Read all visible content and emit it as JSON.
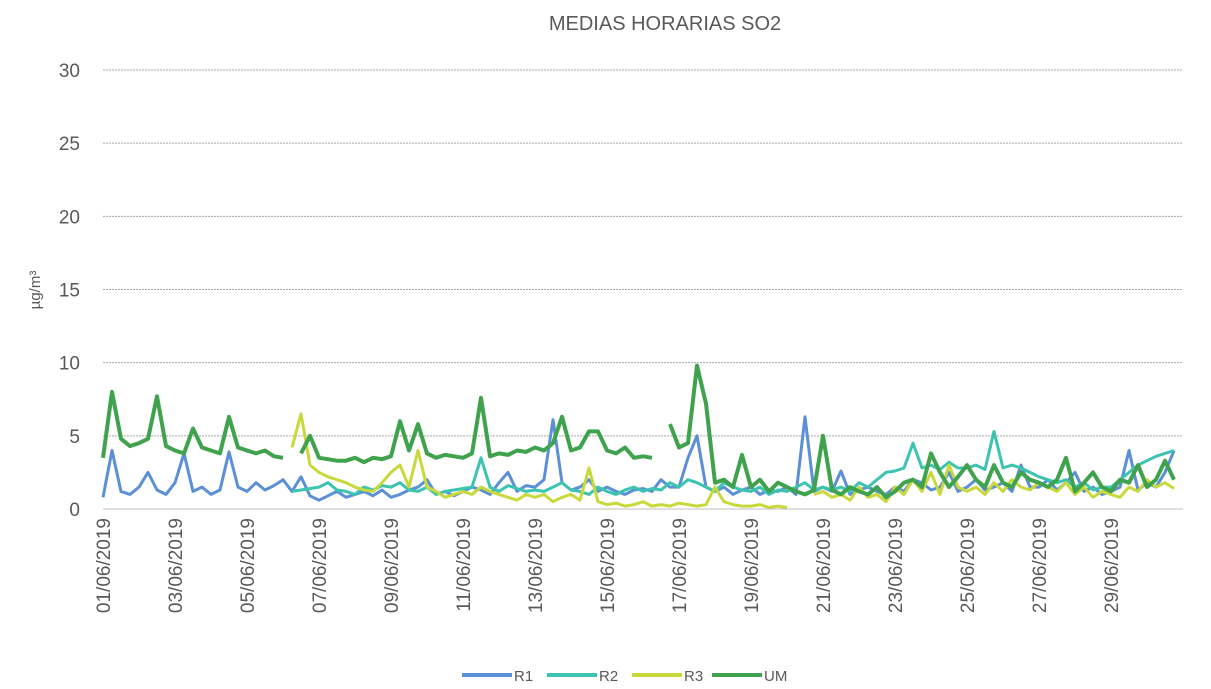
{
  "chart_data": {
    "type": "line",
    "title": "MEDIAS HORARIAS SO2",
    "y_label": "µg/m³",
    "categories": [
      "01/06/2019",
      null,
      null,
      null,
      null,
      null,
      null,
      null,
      "03/06/2019",
      null,
      null,
      null,
      null,
      null,
      null,
      null,
      "05/06/2019",
      null,
      null,
      null,
      null,
      null,
      null,
      null,
      "07/06/2019",
      null,
      null,
      null,
      null,
      null,
      null,
      null,
      "09/06/2019",
      null,
      null,
      null,
      null,
      null,
      null,
      null,
      "11/06/2019",
      null,
      null,
      null,
      null,
      null,
      null,
      null,
      "13/06/2019",
      null,
      null,
      null,
      null,
      null,
      null,
      null,
      "15/06/2019",
      null,
      null,
      null,
      null,
      null,
      null,
      null,
      "17/06/2019",
      null,
      null,
      null,
      null,
      null,
      null,
      null,
      "19/06/2019",
      null,
      null,
      null,
      null,
      null,
      null,
      null,
      "21/06/2019",
      null,
      null,
      null,
      null,
      null,
      null,
      null,
      "23/06/2019",
      null,
      null,
      null,
      null,
      null,
      null,
      null,
      "25/06/2019",
      null,
      null,
      null,
      null,
      null,
      null,
      null,
      "27/06/2019",
      null,
      null,
      null,
      null,
      null,
      null,
      null,
      "29/06/2019",
      null,
      null,
      null,
      null,
      null,
      null,
      null
    ],
    "series": [
      {
        "name": "R1",
        "color": "#5b8fd6",
        "values": [
          0.8,
          4.0,
          1.2,
          1.0,
          1.5,
          2.5,
          1.3,
          1.0,
          1.8,
          3.8,
          1.2,
          1.5,
          1.0,
          1.3,
          3.9,
          1.5,
          1.2,
          1.8,
          1.3,
          1.6,
          2.0,
          1.2,
          2.2,
          0.9,
          0.6,
          0.9,
          1.2,
          0.8,
          1.0,
          1.2,
          0.9,
          1.3,
          0.8,
          1.0,
          1.3,
          1.5,
          2.0,
          1.0,
          1.2,
          0.9,
          1.2,
          1.5,
          1.3,
          1.0,
          1.8,
          2.5,
          1.2,
          1.6,
          1.5,
          2.0,
          6.1,
          1.8,
          1.3,
          1.5,
          2.0,
          1.2,
          1.5,
          1.2,
          1.0,
          1.3,
          1.4,
          1.2,
          2.0,
          1.5,
          1.5,
          3.5,
          5.0,
          1.5,
          1.2,
          1.5,
          1.0,
          1.3,
          1.5,
          1.0,
          1.3,
          1.2,
          1.5,
          1.0,
          6.3,
          1.2,
          1.5,
          1.2,
          2.6,
          1.0,
          1.3,
          1.5,
          1.2,
          1.0,
          1.5,
          1.2,
          2.0,
          1.8,
          1.3,
          1.5,
          2.5,
          1.2,
          1.5,
          2.0,
          1.3,
          1.5,
          1.8,
          1.2,
          3.0,
          1.5,
          1.5,
          2.0,
          1.3,
          1.8,
          2.5,
          1.2,
          1.5,
          1.0,
          1.2,
          1.5,
          4.0,
          1.3,
          1.8,
          1.5,
          2.5,
          4.0
        ]
      },
      {
        "name": "R2",
        "color": "#3cc4b0",
        "values": [
          null,
          null,
          null,
          null,
          null,
          null,
          null,
          null,
          null,
          null,
          null,
          null,
          null,
          null,
          null,
          null,
          null,
          null,
          null,
          null,
          null,
          1.2,
          1.3,
          1.4,
          1.5,
          1.8,
          1.3,
          1.2,
          1.0,
          1.5,
          1.3,
          1.6,
          1.5,
          1.8,
          1.3,
          1.2,
          1.5,
          1.0,
          1.2,
          1.3,
          1.4,
          1.5,
          3.5,
          1.5,
          1.2,
          1.6,
          1.4,
          1.2,
          1.3,
          1.2,
          1.5,
          1.8,
          1.3,
          1.2,
          1.0,
          1.5,
          1.2,
          1.0,
          1.3,
          1.5,
          1.2,
          1.4,
          1.3,
          1.8,
          1.5,
          2.0,
          1.8,
          1.5,
          1.2,
          1.8,
          1.5,
          1.3,
          1.2,
          1.5,
          1.0,
          1.3,
          1.2,
          1.5,
          1.8,
          1.3,
          1.5,
          1.3,
          1.5,
          1.2,
          1.8,
          1.5,
          2.0,
          2.5,
          2.6,
          2.8,
          4.5,
          2.8,
          3.0,
          2.7,
          3.2,
          2.8,
          2.8,
          3.0,
          2.7,
          5.3,
          2.8,
          3.0,
          2.8,
          2.5,
          2.2,
          2.0,
          1.8,
          2.0,
          1.5,
          1.8,
          1.3,
          1.5,
          1.5,
          2.0,
          2.5,
          3.0,
          3.3,
          3.6,
          3.8,
          4.0
        ]
      },
      {
        "name": "R3",
        "color": "#c9d83a",
        "values": [
          null,
          null,
          null,
          null,
          null,
          null,
          null,
          null,
          null,
          null,
          null,
          null,
          null,
          null,
          null,
          null,
          null,
          null,
          null,
          null,
          null,
          4.2,
          6.5,
          3.0,
          2.5,
          2.2,
          2.0,
          1.8,
          1.5,
          1.3,
          1.2,
          1.8,
          2.5,
          3.0,
          1.5,
          4.0,
          1.5,
          1.2,
          0.8,
          1.0,
          1.2,
          1.0,
          1.5,
          1.2,
          1.0,
          0.8,
          0.6,
          1.0,
          0.8,
          1.0,
          0.5,
          0.8,
          1.0,
          0.6,
          2.8,
          0.5,
          0.3,
          0.4,
          0.2,
          0.3,
          0.5,
          0.2,
          0.3,
          0.2,
          0.4,
          0.3,
          0.2,
          0.3,
          1.5,
          0.5,
          0.3,
          0.2,
          0.2,
          0.3,
          0.1,
          0.2,
          0.1,
          null,
          null,
          1.0,
          1.2,
          0.8,
          1.0,
          0.6,
          1.5,
          0.8,
          1.0,
          0.5,
          1.5,
          1.0,
          2.0,
          1.2,
          2.5,
          1.0,
          3.0,
          1.5,
          1.2,
          1.5,
          1.0,
          1.8,
          1.2,
          2.0,
          1.5,
          1.3,
          1.8,
          1.5,
          1.2,
          1.8,
          1.0,
          1.5,
          0.8,
          1.2,
          1.0,
          0.8,
          1.5,
          1.2,
          2.0,
          1.5,
          1.8,
          1.4
        ]
      },
      {
        "name": "UM",
        "color": "#3fa34d",
        "values": [
          3.5,
          8.0,
          4.8,
          4.3,
          4.5,
          4.8,
          7.7,
          4.3,
          4.0,
          3.8,
          5.5,
          4.2,
          4.0,
          3.8,
          6.3,
          4.2,
          4.0,
          3.8,
          4.0,
          3.6,
          3.5,
          null,
          3.8,
          5.0,
          3.5,
          3.4,
          3.3,
          3.3,
          3.5,
          3.2,
          3.5,
          3.4,
          3.6,
          6.0,
          4.0,
          5.8,
          3.8,
          3.5,
          3.7,
          3.6,
          3.5,
          3.8,
          7.6,
          3.6,
          3.8,
          3.7,
          4.0,
          3.9,
          4.2,
          4.0,
          4.5,
          6.3,
          4.0,
          4.2,
          5.3,
          5.3,
          4.0,
          3.8,
          4.2,
          3.5,
          3.6,
          3.5,
          null,
          5.8,
          4.2,
          4.5,
          9.8,
          7.2,
          1.8,
          2.0,
          1.5,
          3.7,
          1.5,
          2.0,
          1.2,
          1.8,
          1.5,
          1.2,
          1.0,
          1.3,
          5.0,
          1.3,
          1.0,
          1.5,
          1.2,
          1.0,
          1.5,
          0.8,
          1.2,
          1.8,
          2.0,
          1.5,
          3.8,
          2.5,
          1.5,
          2.2,
          3.0,
          2.0,
          1.5,
          3.0,
          1.8,
          1.5,
          2.5,
          2.0,
          1.8,
          1.5,
          2.0,
          3.5,
          1.2,
          1.8,
          2.5,
          1.5,
          1.2,
          2.0,
          1.8,
          3.0,
          1.5,
          2.0,
          3.3,
          2.0
        ]
      }
    ],
    "ylim": [
      0,
      30
    ],
    "yticks": [
      0,
      5,
      10,
      15,
      20,
      25,
      30
    ],
    "grid": true
  }
}
